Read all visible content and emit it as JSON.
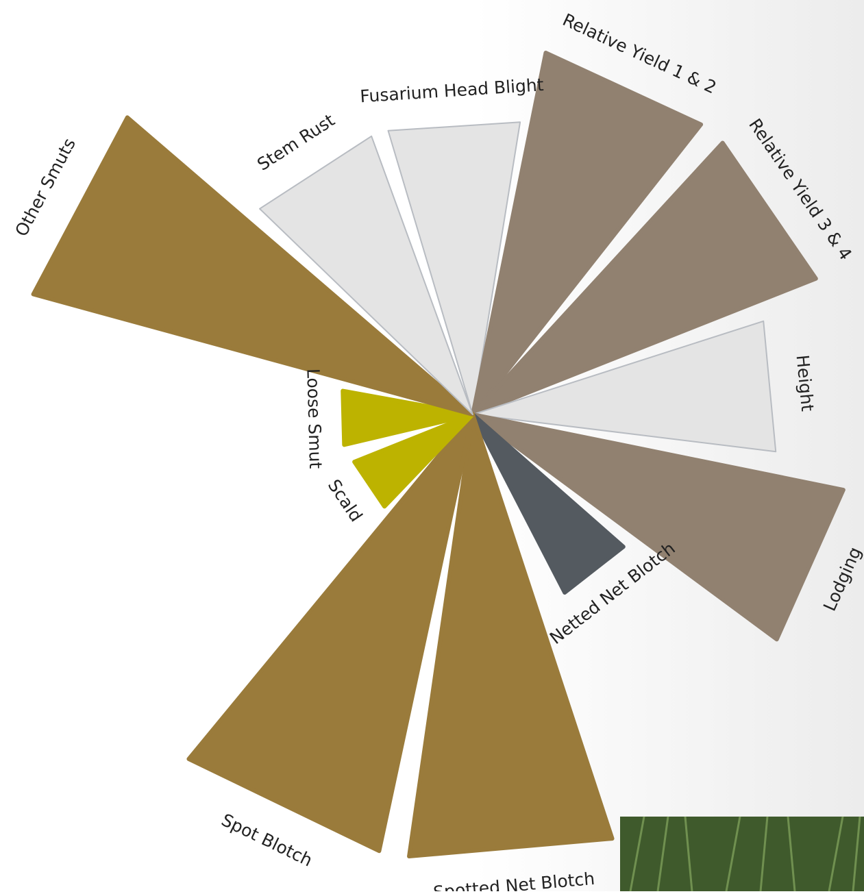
{
  "chart_data": {
    "type": "radial-wedge",
    "categories": [
      "Fusarium Head Blight",
      "Relative Yield 1 & 2",
      "Relative Yield 3 & 4",
      "Height",
      "Lodging",
      "Netted Net Blotch",
      "Spotted Net Blotch",
      "Spot Blotch",
      "Scald",
      "Loose Smut",
      "Other Smuts",
      "Stem Rust"
    ],
    "values": [
      6.5,
      8.1,
      8.1,
      6.7,
      8.3,
      4.4,
      9.8,
      9.8,
      2.8,
      2.9,
      10,
      6.5
    ],
    "colors": [
      "#e4e4e4",
      "#918170",
      "#918170",
      "#e4e4e4",
      "#918170",
      "#545a60",
      "#9a7b3b",
      "#9a7b3b",
      "#bdb300",
      "#bdb300",
      "#9a7b3b",
      "#e4e4e4"
    ],
    "ylim": [
      0,
      10
    ]
  }
}
